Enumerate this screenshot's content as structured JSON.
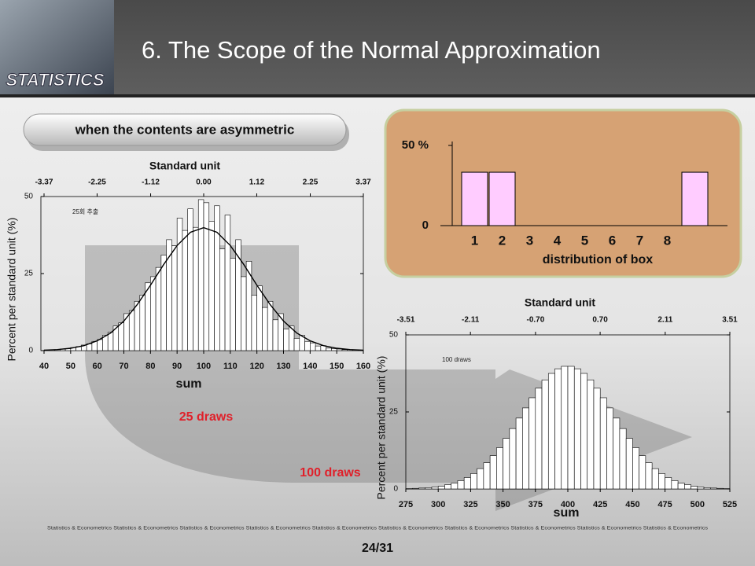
{
  "header": {
    "title": "6. The Scope of the Normal Approximation",
    "logo": "STATISTICS"
  },
  "banner": "when the contents are asymmetric",
  "labels": {
    "small_draws": "25 draws",
    "large_draws": "100 draws"
  },
  "footer": {
    "text": "Statistics & Econometrics Statistics & Econometrics Statistics & Econometrics Statistics & Econometrics Statistics & Econometrics Statistics & Econometrics Statistics & Econometrics Statistics & Econometrics Statistics & Econometrics Statistics & Econometrics",
    "page": "24/31"
  },
  "chart_data": [
    {
      "type": "bar",
      "xlabel": "distribution of box",
      "color": "#ffccff",
      "categories": [
        "1",
        "2",
        "3",
        "4",
        "5",
        "6",
        "7",
        "8",
        null
      ],
      "values": [
        33.3,
        33.3,
        0,
        0,
        0,
        0,
        0,
        0,
        33.3
      ],
      "ylim": [
        0,
        50
      ],
      "yticks": [
        0,
        {
          "value": 50,
          "label": "50 %"
        }
      ]
    },
    {
      "type": "histogram",
      "xlabel": "sum",
      "ylabel": "Percent per standard unit (%)",
      "x2label": "Standard unit",
      "annotation": "25회 추출",
      "bins": [
        40,
        42,
        44,
        46,
        48,
        50,
        52,
        54,
        56,
        58,
        60,
        62,
        64,
        66,
        68,
        70,
        72,
        74,
        76,
        78,
        80,
        82,
        84,
        86,
        88,
        90,
        92,
        94,
        96,
        98,
        100,
        102,
        104,
        106,
        108,
        110,
        112,
        114,
        116,
        118,
        120,
        122,
        124,
        126,
        128,
        130,
        132,
        134,
        136,
        138,
        140,
        142,
        144,
        146,
        148,
        150,
        152,
        154,
        156,
        158,
        160
      ],
      "values": [
        0.2,
        0.3,
        0.3,
        0.5,
        0.6,
        1,
        1.3,
        1.8,
        2.2,
        3,
        3.6,
        5,
        6,
        8,
        9,
        12,
        13,
        16,
        18,
        22,
        24,
        27,
        31,
        36,
        34,
        43,
        39,
        46,
        40,
        49,
        48,
        42,
        47,
        33,
        44,
        30,
        36,
        24,
        29,
        18,
        21,
        14,
        16,
        10,
        12,
        7,
        8,
        4,
        5,
        3,
        2.5,
        1.5,
        1.6,
        0.8,
        0.6,
        0.5,
        0.3,
        0.3,
        0.2,
        0.1
      ],
      "curve": {
        "x": [
          40,
          45,
          50,
          55,
          60,
          65,
          70,
          75,
          80,
          85,
          90,
          95,
          100,
          105,
          110,
          115,
          120,
          125,
          130,
          135,
          140,
          145,
          150,
          155,
          160
        ],
        "y": [
          0.14,
          0.34,
          0.77,
          1.6,
          3.2,
          5.7,
          9.6,
          14.9,
          21.2,
          28,
          34.1,
          38.4,
          39.9,
          38.4,
          34.1,
          28,
          21.2,
          14.9,
          9.6,
          5.7,
          3.2,
          1.6,
          0.77,
          0.34,
          0.14
        ]
      },
      "xlim": [
        40,
        160
      ],
      "xticks": [
        40,
        50,
        60,
        70,
        80,
        90,
        100,
        110,
        120,
        130,
        140,
        150,
        160
      ],
      "ylim": [
        0,
        50
      ],
      "yticks": [
        0,
        25,
        50
      ],
      "x2lim": [
        -3.37,
        3.37
      ],
      "x2ticks": [
        -3.37,
        -2.25,
        -1.12,
        {
          "value": 0,
          "label": "0.00"
        },
        1.12,
        2.25,
        3.37
      ]
    },
    {
      "type": "histogram",
      "xlabel": "sum",
      "ylabel": "Percent per standard unit (%)",
      "x2label": "Standard unit",
      "annotation": "100 draws",
      "bins": [
        275,
        280,
        285,
        290,
        295,
        300,
        305,
        310,
        315,
        320,
        325,
        330,
        335,
        340,
        345,
        350,
        355,
        360,
        365,
        370,
        375,
        380,
        385,
        390,
        395,
        400,
        405,
        410,
        415,
        420,
        425,
        430,
        435,
        440,
        445,
        450,
        455,
        460,
        465,
        470,
        475,
        480,
        485,
        490,
        495,
        500,
        505,
        510,
        515,
        520,
        525
      ],
      "values": [
        0.1,
        0.2,
        0.3,
        0.4,
        0.6,
        0.9,
        1.4,
        1.9,
        2.7,
        3.7,
        5.0,
        6.6,
        8.5,
        10.8,
        13.4,
        16.4,
        19.6,
        23,
        26.3,
        29.6,
        32.7,
        35.4,
        37.5,
        39,
        39.8,
        39.8,
        39,
        37.5,
        35.4,
        32.7,
        29.6,
        26.3,
        23,
        19.6,
        16.4,
        13.4,
        10.8,
        8.5,
        6.6,
        5.0,
        3.7,
        2.7,
        1.9,
        1.4,
        0.9,
        0.6,
        0.4,
        0.3,
        0.2,
        0.1
      ],
      "xlim": [
        275,
        525
      ],
      "xticks": [
        275,
        300,
        325,
        350,
        375,
        400,
        425,
        450,
        475,
        500,
        525
      ],
      "ylim": [
        0,
        50
      ],
      "yticks": [
        0,
        25,
        50
      ],
      "x2lim": [
        -3.51,
        3.51
      ],
      "x2ticks": [
        -3.51,
        -2.11,
        {
          "value": -0.7,
          "label": "-0.70"
        },
        {
          "value": 0.7,
          "label": "0.70"
        },
        2.11,
        3.51
      ]
    }
  ]
}
